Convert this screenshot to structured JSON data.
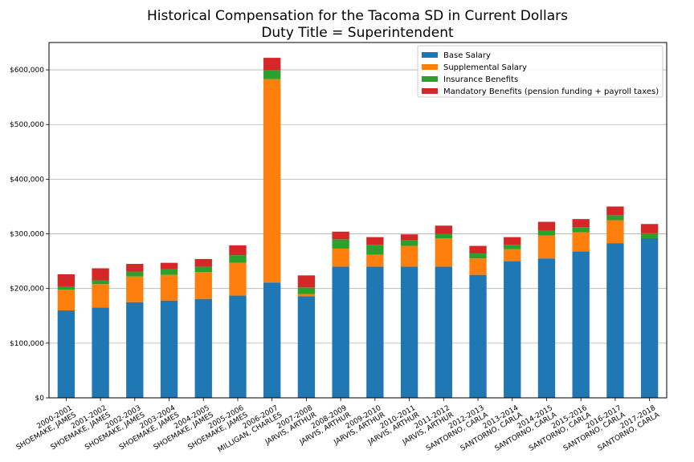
{
  "chart_data": {
    "type": "bar",
    "stacked": true,
    "title": "Historical Compensation for the Tacoma SD in Current Dollars",
    "subtitle": "Duty Title = Superintendent",
    "xlabel": "",
    "ylabel": "",
    "ylim": [
      0,
      650000
    ],
    "yticks": [
      0,
      100000,
      200000,
      300000,
      400000,
      500000,
      600000
    ],
    "ytick_labels": [
      "$0",
      "$100,000",
      "$200,000",
      "$300,000",
      "$400,000",
      "$500,000",
      "$600,000"
    ],
    "grid": "horizontal",
    "legend_position": "top-right",
    "categories": [
      [
        "2000-2001",
        "SHOEMAKE, JAMES"
      ],
      [
        "2001-2002",
        "SHOEMAKE, JAMES"
      ],
      [
        "2002-2003",
        "SHOEMAKE, JAMES"
      ],
      [
        "2003-2004",
        "SHOEMAKE, JAMES"
      ],
      [
        "2004-2005",
        "SHOEMAKE, JAMES"
      ],
      [
        "2005-2006",
        "SHOEMAKE, JAMES"
      ],
      [
        "2006-2007",
        "MILLIGAN, CHARLES"
      ],
      [
        "2007-2008",
        "JARVIS, ARTHUR"
      ],
      [
        "2008-2009",
        "JARVIS, ARTHUR"
      ],
      [
        "2009-2010",
        "JARVIS, ARTHUR"
      ],
      [
        "2010-2011",
        "JARVIS, ARTHUR"
      ],
      [
        "2011-2012",
        "JARVIS, ARTHUR"
      ],
      [
        "2012-2013",
        "SANTORNO, CARLA"
      ],
      [
        "2013-2014",
        "SANTORNO, CARLA"
      ],
      [
        "2014-2015",
        "SANTORNO, CARLA"
      ],
      [
        "2015-2016",
        "SANTORNO, CARLA"
      ],
      [
        "2016-2017",
        "SANTORNO, CARLA"
      ],
      [
        "2017-2018",
        "SANTORNO, CARLA"
      ]
    ],
    "series": [
      {
        "name": "Base Salary",
        "color": "#1f77b4",
        "values": [
          160000,
          165000,
          175000,
          178000,
          181000,
          187000,
          211000,
          186000,
          240000,
          240000,
          240000,
          240000,
          225000,
          250000,
          255000,
          268000,
          283000,
          292000
        ]
      },
      {
        "name": "Supplemental Salary",
        "color": "#ff7f0e",
        "values": [
          38000,
          43000,
          47000,
          47000,
          49000,
          60000,
          372000,
          4000,
          33000,
          22000,
          38000,
          52000,
          30000,
          22000,
          42000,
          35000,
          42000,
          0
        ]
      },
      {
        "name": "Insurance Benefits",
        "color": "#2ca02c",
        "values": [
          6000,
          7000,
          9000,
          10000,
          10000,
          14000,
          16000,
          12000,
          17000,
          18000,
          10000,
          8000,
          9000,
          8000,
          9000,
          9000,
          9000,
          9000
        ]
      },
      {
        "name": "Mandatory Benefits (pension funding + payroll taxes)",
        "color": "#d62728",
        "values": [
          22000,
          22000,
          14000,
          12000,
          14000,
          18000,
          23000,
          22000,
          14000,
          14000,
          11000,
          15000,
          14000,
          14000,
          16000,
          15000,
          16000,
          17000
        ]
      }
    ]
  }
}
